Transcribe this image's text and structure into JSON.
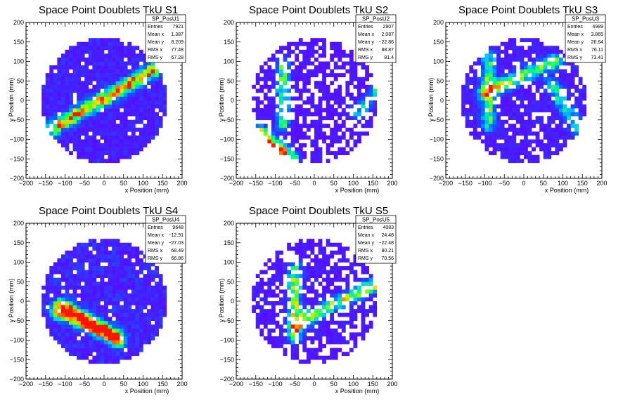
{
  "canvas": {
    "background": "#ffffff"
  },
  "chart_data": [
    {
      "type": "heatmap",
      "title": "Space Point Doublets TkU S1",
      "xlabel": "x Position (mm)",
      "ylabel": "y Position (mm)",
      "xlim": [
        -200,
        200
      ],
      "ylim": [
        -200,
        200
      ],
      "xticks": [
        "−200",
        "−150",
        "−100",
        "−50",
        "0",
        "50",
        "100",
        "150",
        "200"
      ],
      "yticks": [
        "−200",
        "−150",
        "−100",
        "−50",
        "0",
        "50",
        "100",
        "150",
        "200"
      ],
      "detector_radius": 160,
      "bin_size": 10,
      "tracks": [
        {
          "x1": -130,
          "y1": -70,
          "x2": 150,
          "y2": 90,
          "weight": 1.0
        }
      ],
      "background_level": 0.18,
      "stats": {
        "name": "SP_PosU1",
        "rows": [
          {
            "label": "Entries",
            "value": "7921"
          },
          {
            "label": "Mean x",
            "value": "1.387"
          },
          {
            "label": "Mean y",
            "value": "8.209"
          },
          {
            "label": "RMS x",
            "value": "77.48"
          },
          {
            "label": "RMS y",
            "value": "67.28"
          }
        ]
      }
    },
    {
      "type": "heatmap",
      "title": "Space Point Doublets TkU S2",
      "xlabel": "x Position (mm)",
      "ylabel": "y Position (mm)",
      "xlim": [
        -200,
        200
      ],
      "ylim": [
        -200,
        200
      ],
      "xticks": [
        "−200",
        "−150",
        "−100",
        "−50",
        "0",
        "50",
        "100",
        "150",
        "200"
      ],
      "yticks": [
        "−200",
        "−150",
        "−100",
        "−50",
        "0",
        "50",
        "100",
        "150",
        "200"
      ],
      "detector_radius": 160,
      "bin_size": 10,
      "tracks": [
        {
          "x1": -140,
          "y1": -80,
          "x2": -60,
          "y2": -150,
          "weight": 1.0
        },
        {
          "x1": -80,
          "y1": 90,
          "x2": -80,
          "y2": -60,
          "weight": 0.6
        },
        {
          "x1": 110,
          "y1": -30,
          "x2": 160,
          "y2": 20,
          "weight": 0.5
        }
      ],
      "background_level": 0.12,
      "sparse": 0.35,
      "stats": {
        "name": "SP_PosU2",
        "rows": [
          {
            "label": "Entries",
            "value": "2907"
          },
          {
            "label": "Mean x",
            "value": "2.087"
          },
          {
            "label": "Mean y",
            "value": "−22.86"
          },
          {
            "label": "RMS x",
            "value": "88.87"
          },
          {
            "label": "RMS y",
            "value": "81.4"
          }
        ]
      }
    },
    {
      "type": "heatmap",
      "title": "Space Point Doublets TkU S3",
      "xlabel": "x Position (mm)",
      "ylabel": "y Position (mm)",
      "xlim": [
        -200,
        200
      ],
      "ylim": [
        -200,
        200
      ],
      "xticks": [
        "−200",
        "−150",
        "−100",
        "−50",
        "0",
        "50",
        "100",
        "150",
        "200"
      ],
      "yticks": [
        "−200",
        "−150",
        "−100",
        "−50",
        "0",
        "50",
        "100",
        "150",
        "200"
      ],
      "detector_radius": 160,
      "bin_size": 10,
      "tracks": [
        {
          "x1": -90,
          "y1": 110,
          "x2": -90,
          "y2": -60,
          "weight": 0.6
        },
        {
          "x1": -100,
          "y1": 20,
          "x2": 80,
          "y2": 100,
          "weight": 0.7
        },
        {
          "x1": 70,
          "y1": 40,
          "x2": 140,
          "y2": -70,
          "weight": 0.5
        }
      ],
      "background_level": 0.16,
      "sparse": 0.2,
      "stats": {
        "name": "SP_PosU3",
        "rows": [
          {
            "label": "Entries",
            "value": "4989"
          },
          {
            "label": "Mean x",
            "value": "3.865"
          },
          {
            "label": "Mean y",
            "value": "26.64"
          },
          {
            "label": "RMS x",
            "value": "76.11"
          },
          {
            "label": "RMS y",
            "value": "73.41"
          }
        ]
      }
    },
    {
      "type": "heatmap",
      "title": "Space Point Doublets TkU S4",
      "xlabel": "x Position (mm)",
      "ylabel": "y Position (mm)",
      "xlim": [
        -200,
        200
      ],
      "ylim": [
        -200,
        200
      ],
      "xticks": [
        "−200",
        "−150",
        "−100",
        "−50",
        "0",
        "50",
        "100",
        "150",
        "200"
      ],
      "yticks": [
        "−200",
        "−150",
        "−100",
        "−50",
        "0",
        "50",
        "100",
        "150",
        "200"
      ],
      "detector_radius": 160,
      "bin_size": 10,
      "tracks": [
        {
          "x1": -110,
          "y1": -10,
          "x2": 40,
          "y2": -100,
          "weight": 1.0
        },
        {
          "x1": -120,
          "y1": -30,
          "x2": 30,
          "y2": -90,
          "weight": 0.6
        }
      ],
      "background_level": 0.2,
      "stats": {
        "name": "SP_PosU4",
        "rows": [
          {
            "label": "Entries",
            "value": "9648"
          },
          {
            "label": "Mean x",
            "value": "−12.91"
          },
          {
            "label": "Mean y",
            "value": "−27.03"
          },
          {
            "label": "RMS x",
            "value": "68.49"
          },
          {
            "label": "RMS y",
            "value": "66.86"
          }
        ]
      }
    },
    {
      "type": "heatmap",
      "title": "Space Point Doublets TkU S5",
      "xlabel": "x Position (mm)",
      "ylabel": "y Position (mm)",
      "xlim": [
        -200,
        200
      ],
      "ylim": [
        -200,
        200
      ],
      "xticks": [
        "−200",
        "−150",
        "−100",
        "−50",
        "0",
        "50",
        "100",
        "150",
        "200"
      ],
      "yticks": [
        "−200",
        "−150",
        "−100",
        "−50",
        "0",
        "50",
        "100",
        "150",
        "200"
      ],
      "detector_radius": 160,
      "bin_size": 10,
      "tracks": [
        {
          "x1": -50,
          "y1": 80,
          "x2": -50,
          "y2": -90,
          "weight": 0.7
        },
        {
          "x1": -50,
          "y1": -60,
          "x2": 150,
          "y2": 40,
          "weight": 0.8
        }
      ],
      "background_level": 0.14,
      "sparse": 0.3,
      "stats": {
        "name": "SP_PosU5",
        "rows": [
          {
            "label": "Entries",
            "value": "4083"
          },
          {
            "label": "Mean x",
            "value": "24.48"
          },
          {
            "label": "Mean y",
            "value": "−22.48"
          },
          {
            "label": "RMS x",
            "value": "80.21"
          },
          {
            "label": "RMS y",
            "value": "70.56"
          }
        ]
      }
    }
  ]
}
